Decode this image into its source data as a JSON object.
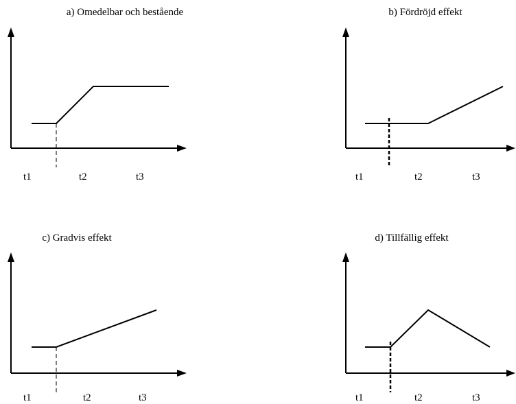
{
  "panels": [
    {
      "title": "a) Omedelbar och bestående",
      "ticks": [
        "t1",
        "t2",
        "t3"
      ],
      "marker": "thin"
    },
    {
      "title": "b) Fördröjd effekt",
      "ticks": [
        "t1",
        "t2",
        "t3"
      ],
      "marker": "thick"
    },
    {
      "title": "c) Gradvis effekt",
      "ticks": [
        "t1",
        "t2",
        "t3"
      ],
      "marker": "thin"
    },
    {
      "title": "d) Tillfällig effekt",
      "ticks": [
        "t1",
        "t2",
        "t3"
      ],
      "marker": "thick"
    }
  ]
}
